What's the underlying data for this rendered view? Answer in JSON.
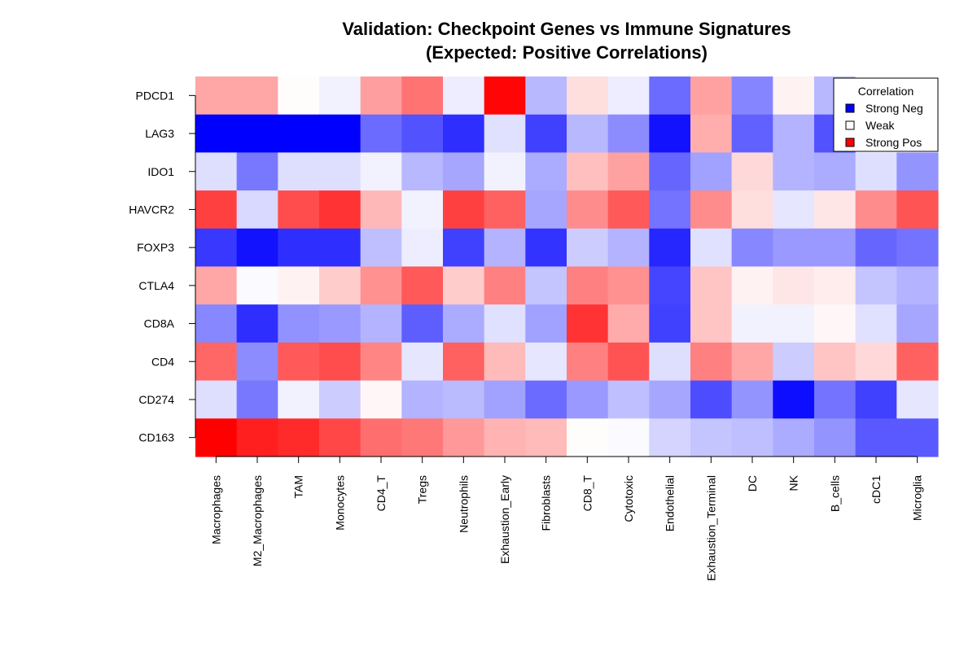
{
  "chart_data": {
    "type": "heatmap",
    "title": "Validation: Checkpoint Genes vs Immune Signatures",
    "subtitle": "(Expected: Positive Correlations)",
    "xlabel": "",
    "ylabel": "",
    "x_categories": [
      "Macrophages",
      "M2_Macrophages",
      "TAM",
      "Monocytes",
      "CD4_T",
      "Tregs",
      "Neutrophils",
      "Exhaustion_Early",
      "Fibroblasts",
      "CD8_T",
      "Cytotoxic",
      "Endothelial",
      "Exhaustion_Terminal",
      "DC",
      "NK",
      "B_cells",
      "cDC1",
      "Microglia"
    ],
    "y_categories": [
      "PDCD1",
      "LAG3",
      "IDO1",
      "HAVCR2",
      "FOXP3",
      "CTLA4",
      "CD8A",
      "CD4",
      "CD274",
      "CD163"
    ],
    "value_range": [
      -1,
      1
    ],
    "color_scale": {
      "negative": "#0000ff",
      "neutral": "#ffffff",
      "positive": "#ff0000"
    },
    "values": [
      [
        0.35,
        0.35,
        0.01,
        -0.05,
        0.38,
        0.55,
        -0.07,
        0.98,
        -0.28,
        0.13,
        -0.07,
        -0.58,
        0.37,
        -0.48,
        0.05,
        -0.28,
        0.0,
        0.0
      ],
      [
        -1.0,
        -1.0,
        -1.0,
        -1.0,
        -0.58,
        -0.68,
        -0.82,
        -0.12,
        -0.75,
        -0.28,
        -0.45,
        -0.93,
        0.32,
        -0.62,
        -0.3,
        -0.68,
        0.0,
        0.0
      ],
      [
        -0.13,
        -0.53,
        -0.13,
        -0.13,
        -0.05,
        -0.28,
        -0.35,
        -0.05,
        -0.33,
        0.25,
        0.37,
        -0.6,
        -0.37,
        0.15,
        -0.3,
        -0.33,
        -0.13,
        -0.42
      ],
      [
        0.75,
        -0.15,
        0.7,
        0.8,
        0.28,
        -0.05,
        0.75,
        0.62,
        -0.35,
        0.45,
        0.65,
        -0.55,
        0.45,
        0.13,
        -0.1,
        0.1,
        0.45,
        0.67
      ],
      [
        -0.78,
        -0.93,
        -0.82,
        -0.82,
        -0.25,
        -0.07,
        -0.75,
        -0.3,
        -0.8,
        -0.2,
        -0.3,
        -0.85,
        -0.12,
        -0.47,
        -0.4,
        -0.4,
        -0.6,
        -0.55
      ],
      [
        0.35,
        -0.02,
        0.05,
        0.2,
        0.43,
        0.65,
        0.2,
        0.5,
        -0.23,
        0.5,
        0.43,
        -0.73,
        0.23,
        0.05,
        0.1,
        0.07,
        -0.23,
        -0.3
      ],
      [
        -0.47,
        -0.82,
        -0.43,
        -0.4,
        -0.3,
        -0.63,
        -0.33,
        -0.12,
        -0.37,
        0.8,
        0.33,
        -0.75,
        0.23,
        -0.05,
        -0.05,
        0.03,
        -0.12,
        -0.35
      ],
      [
        0.6,
        -0.45,
        0.65,
        0.7,
        0.48,
        -0.1,
        0.62,
        0.27,
        -0.1,
        0.5,
        0.68,
        -0.13,
        0.5,
        0.35,
        -0.2,
        0.23,
        0.15,
        0.62
      ],
      [
        -0.13,
        -0.53,
        -0.05,
        -0.2,
        0.03,
        -0.3,
        -0.27,
        -0.37,
        -0.58,
        -0.4,
        -0.25,
        -0.35,
        -0.7,
        -0.42,
        -0.95,
        -0.55,
        -0.75,
        -0.1
      ],
      [
        1.0,
        0.88,
        0.83,
        0.72,
        0.57,
        0.53,
        0.4,
        0.3,
        0.27,
        0.01,
        -0.02,
        -0.17,
        -0.23,
        -0.25,
        -0.33,
        -0.42,
        -0.65,
        -0.65
      ]
    ],
    "legend": {
      "title": "Correlation",
      "placement": "top-right",
      "entries": [
        {
          "label": "Strong Neg",
          "color": "#0000ff"
        },
        {
          "label": "Weak",
          "color": "#ffffff"
        },
        {
          "label": "Strong Pos",
          "color": "#ff0000"
        }
      ]
    },
    "grid": false
  }
}
